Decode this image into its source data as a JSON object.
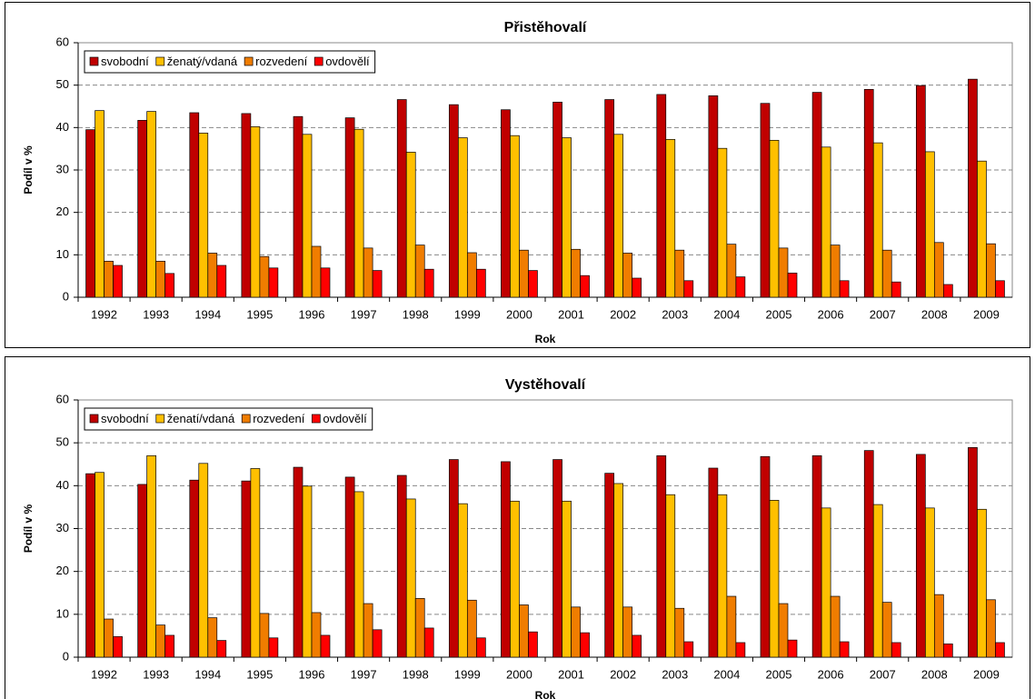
{
  "chart_data": [
    {
      "type": "bar",
      "title": "Přistěhovalí",
      "xlabel": "Rok",
      "ylabel": "Podíl v %",
      "categories": [
        "1992",
        "1993",
        "1994",
        "1995",
        "1996",
        "1997",
        "1998",
        "1999",
        "2000",
        "2001",
        "2002",
        "2003",
        "2004",
        "2005",
        "2006",
        "2007",
        "2008",
        "2009"
      ],
      "series": [
        {
          "name": "svobodní",
          "color": "#c00000",
          "values": [
            39.5,
            41.7,
            43.5,
            43.3,
            42.6,
            42.3,
            46.6,
            45.4,
            44.2,
            46.0,
            46.6,
            47.8,
            47.5,
            45.7,
            48.3,
            49.0,
            49.9,
            51.4
          ]
        },
        {
          "name": "ženatý/vdaná",
          "color": "#ffc000",
          "values": [
            44.0,
            43.8,
            38.7,
            40.2,
            38.4,
            39.6,
            34.2,
            37.6,
            38.1,
            37.6,
            38.4,
            37.2,
            35.1,
            37.0,
            35.4,
            36.4,
            34.3,
            32.1
          ]
        },
        {
          "name": "rozvedení",
          "color": "#f07d00",
          "values": [
            8.5,
            8.5,
            10.4,
            9.6,
            12.0,
            11.6,
            12.3,
            10.5,
            11.1,
            11.3,
            10.4,
            11.1,
            12.5,
            11.6,
            12.3,
            11.1,
            12.9,
            12.6
          ]
        },
        {
          "name": "ovdovělí",
          "color": "#ff0000",
          "values": [
            7.5,
            5.6,
            7.5,
            6.9,
            6.9,
            6.3,
            6.6,
            6.6,
            6.3,
            5.1,
            4.5,
            3.9,
            4.8,
            5.7,
            3.9,
            3.6,
            3.0,
            3.9
          ]
        }
      ],
      "ylim": [
        0,
        60
      ],
      "yticks": [
        0,
        10,
        20,
        30,
        40,
        50,
        60
      ],
      "grid": true,
      "legend": "top-left"
    },
    {
      "type": "bar",
      "title": "Vystěhovalí",
      "xlabel": "Rok",
      "ylabel": "Podíl v %",
      "categories": [
        "1992",
        "1993",
        "1994",
        "1995",
        "1996",
        "1997",
        "1998",
        "1999",
        "2000",
        "2001",
        "2002",
        "2003",
        "2004",
        "2005",
        "2006",
        "2007",
        "2008",
        "2009"
      ],
      "series": [
        {
          "name": "svobodní",
          "color": "#c00000",
          "values": [
            42.8,
            40.3,
            41.3,
            41.1,
            44.3,
            42.0,
            42.4,
            46.1,
            45.6,
            46.1,
            42.9,
            47.0,
            44.1,
            46.8,
            47.0,
            48.2,
            47.3,
            48.9
          ]
        },
        {
          "name": "ženatí/vdaná",
          "color": "#ffc000",
          "values": [
            43.1,
            47.0,
            45.2,
            44.0,
            39.9,
            38.6,
            36.9,
            35.8,
            36.4,
            36.4,
            40.5,
            37.9,
            37.9,
            36.6,
            34.8,
            35.6,
            34.8,
            34.5
          ]
        },
        {
          "name": "rozvedení",
          "color": "#f07d00",
          "values": [
            8.9,
            7.5,
            9.2,
            10.2,
            10.4,
            12.5,
            13.7,
            13.3,
            12.2,
            11.7,
            11.7,
            11.4,
            14.2,
            12.5,
            14.2,
            12.8,
            14.6,
            13.4
          ]
        },
        {
          "name": "ovdovělí",
          "color": "#ff0000",
          "values": [
            4.8,
            5.1,
            3.9,
            4.5,
            5.1,
            6.4,
            6.8,
            4.5,
            5.9,
            5.7,
            5.1,
            3.6,
            3.4,
            4.0,
            3.6,
            3.4,
            3.1,
            3.4
          ]
        }
      ],
      "ylim": [
        0,
        60
      ],
      "yticks": [
        0,
        10,
        20,
        30,
        40,
        50,
        60
      ],
      "grid": true,
      "legend": "top-left"
    }
  ]
}
